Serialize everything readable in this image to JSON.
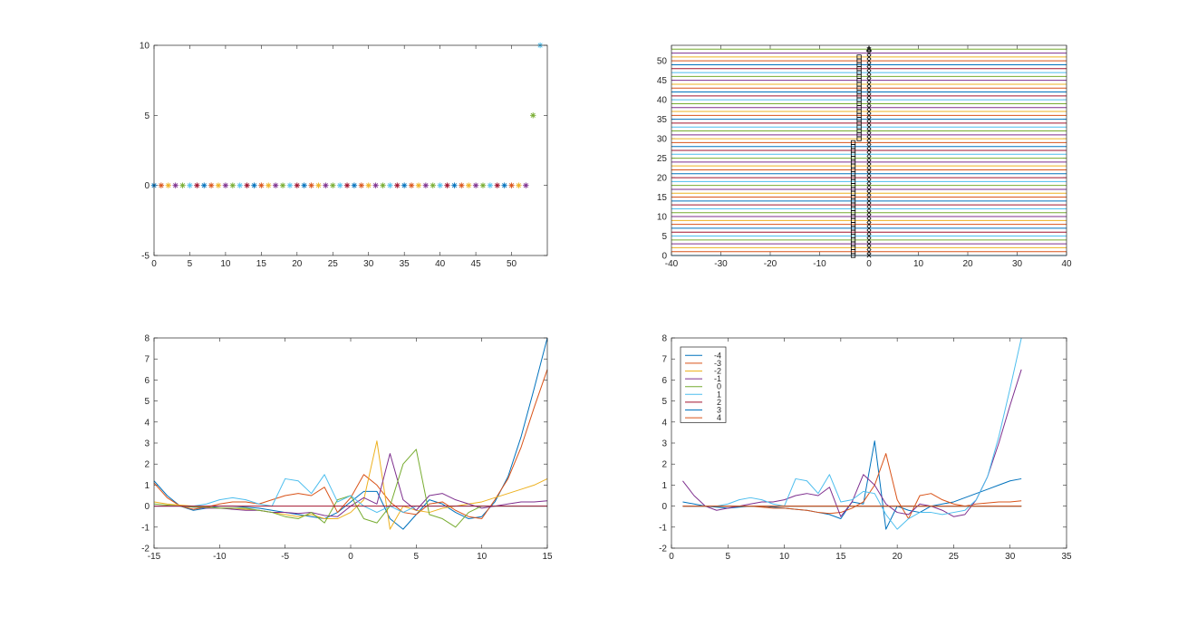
{
  "chart_data": [
    {
      "id": "p1",
      "type": "scatter",
      "marker": "asterisk",
      "xlim": [
        0,
        55
      ],
      "ylim": [
        -5,
        10
      ],
      "xticks": [
        0,
        5,
        10,
        15,
        20,
        25,
        30,
        35,
        40,
        45,
        50
      ],
      "yticks": [
        -5,
        0,
        5,
        10
      ],
      "series": [
        {
          "x": [
            0,
            1,
            2,
            3,
            4,
            5,
            6,
            7,
            8,
            9,
            10,
            11,
            12,
            13,
            14,
            15,
            16,
            17,
            18,
            19,
            20,
            21,
            22,
            23,
            24,
            25,
            26,
            27,
            28,
            29,
            30,
            31,
            32,
            33,
            34,
            35,
            36,
            37,
            38,
            39,
            40,
            41,
            42,
            43,
            44,
            45,
            46,
            47,
            48,
            49,
            50,
            51,
            52
          ],
          "y": [
            0,
            0,
            0,
            0,
            0,
            0,
            0,
            0,
            0,
            0,
            0,
            0,
            0,
            0,
            0,
            0,
            0,
            0,
            0,
            0,
            0,
            0,
            0,
            0,
            0,
            0,
            0,
            0,
            0,
            0,
            0,
            0,
            0,
            0,
            0,
            0,
            0,
            0,
            0,
            0,
            0,
            0,
            0,
            0,
            0,
            0,
            0,
            0,
            0,
            0,
            0,
            0,
            0
          ]
        },
        {
          "x": [
            53
          ],
          "y": [
            5
          ]
        },
        {
          "x": [
            54
          ],
          "y": [
            10
          ]
        }
      ]
    },
    {
      "id": "p2",
      "type": "line",
      "xlim": [
        -40,
        40
      ],
      "ylim": [
        0,
        54
      ],
      "xticks": [
        -40,
        -30,
        -20,
        -10,
        0,
        10,
        20,
        30,
        40
      ],
      "yticks": [
        0,
        5,
        10,
        15,
        20,
        25,
        30,
        35,
        40,
        45,
        50
      ],
      "horizontal_lines_y_range": [
        0,
        53
      ],
      "square_markers": {
        "x_by_level": [
          [
            0,
            29,
            -3.2
          ],
          [
            30,
            51,
            -2.0
          ]
        ]
      },
      "x_markers_x": 0,
      "top_marker_y": 53
    },
    {
      "id": "p3",
      "type": "line",
      "xlim": [
        -15,
        15
      ],
      "ylim": [
        -2,
        8
      ],
      "xticks": [
        -15,
        -10,
        -5,
        0,
        5,
        10,
        15
      ],
      "yticks": [
        -2,
        -1,
        0,
        1,
        2,
        3,
        4,
        5,
        6,
        7,
        8
      ],
      "x": [
        -15,
        -14,
        -13,
        -12,
        -11,
        -10,
        -9,
        -8,
        -7,
        -6,
        -5,
        -4,
        -3,
        -2,
        -1,
        0,
        1,
        2,
        3,
        4,
        5,
        6,
        7,
        8,
        9,
        10,
        11,
        12,
        13,
        14,
        15
      ],
      "series": [
        {
          "values": [
            1.2,
            0.5,
            0.0,
            -0.2,
            -0.1,
            0.0,
            0.0,
            -0.05,
            -0.1,
            -0.2,
            -0.3,
            -0.4,
            -0.5,
            -0.6,
            -0.3,
            0.2,
            0.7,
            0.7,
            -0.6,
            -1.1,
            -0.4,
            0.3,
            0.1,
            -0.3,
            -0.6,
            -0.5,
            0.2,
            1.4,
            3.3,
            5.6,
            8.0
          ]
        },
        {
          "values": [
            1.1,
            0.4,
            0.0,
            -0.15,
            -0.05,
            0.1,
            0.2,
            0.2,
            0.1,
            0.3,
            0.5,
            0.6,
            0.5,
            0.9,
            -0.3,
            0.4,
            1.5,
            1.0,
            0.2,
            -0.3,
            -0.4,
            0.1,
            0.2,
            -0.2,
            -0.5,
            -0.6,
            0.3,
            1.3,
            2.8,
            4.7,
            6.5
          ]
        },
        {
          "values": [
            0.2,
            0.1,
            0.05,
            0.0,
            -0.05,
            -0.1,
            -0.1,
            -0.15,
            -0.2,
            -0.3,
            -0.4,
            -0.5,
            -0.4,
            -0.6,
            -0.6,
            -0.3,
            0.3,
            3.1,
            -1.1,
            0.0,
            -0.2,
            -0.3,
            -0.1,
            0.0,
            0.1,
            0.2,
            0.4,
            0.6,
            0.8,
            1.0,
            1.3
          ]
        },
        {
          "values": [
            0.0,
            0.0,
            0.0,
            -0.05,
            -0.1,
            -0.1,
            -0.15,
            -0.2,
            -0.2,
            -0.3,
            -0.3,
            -0.35,
            -0.3,
            -0.45,
            -0.5,
            0.0,
            0.4,
            0.1,
            2.5,
            0.3,
            -0.2,
            0.5,
            0.6,
            0.3,
            0.1,
            -0.1,
            0.0,
            0.1,
            0.2,
            0.2,
            0.25
          ]
        },
        {
          "values": [
            0.1,
            0.05,
            0.0,
            -0.05,
            -0.05,
            -0.1,
            -0.1,
            -0.1,
            -0.2,
            -0.3,
            -0.5,
            -0.6,
            -0.3,
            -0.8,
            0.3,
            0.5,
            -0.6,
            -0.8,
            0.0,
            2.0,
            2.7,
            -0.4,
            -0.6,
            -1.0,
            -0.3,
            0.0,
            0.0,
            0.0,
            0.0,
            0.0,
            0.0
          ]
        },
        {
          "values": [
            0.0,
            0.0,
            0.0,
            0.0,
            0.1,
            0.3,
            0.4,
            0.3,
            0.1,
            0.0,
            1.3,
            1.2,
            0.6,
            1.5,
            0.2,
            0.5,
            0.0,
            -0.3,
            0.0,
            -0.3,
            0.0,
            0.0,
            0.0,
            0.0,
            0.0,
            0.0,
            0.0,
            0.0,
            0.0,
            0.0,
            0.0
          ]
        },
        {
          "values": [
            0.0,
            0.0,
            0.0,
            0.0,
            0.0,
            0.0,
            0.0,
            0.0,
            0.0,
            0.0,
            0.0,
            0.0,
            0.0,
            0.0,
            0.0,
            0.0,
            0.0,
            0.0,
            0.0,
            0.0,
            0.0,
            0.0,
            0.0,
            0.0,
            0.0,
            0.0,
            0.0,
            0.0,
            0.0,
            0.0,
            0.0
          ]
        }
      ]
    },
    {
      "id": "p4",
      "type": "line",
      "xlim": [
        0,
        35
      ],
      "ylim": [
        -2,
        8
      ],
      "xticks": [
        0,
        5,
        10,
        15,
        20,
        25,
        30,
        35
      ],
      "yticks": [
        -2,
        -1,
        0,
        1,
        2,
        3,
        4,
        5,
        6,
        7,
        8
      ],
      "x": [
        1,
        2,
        3,
        4,
        5,
        6,
        7,
        8,
        9,
        10,
        11,
        12,
        13,
        14,
        15,
        16,
        17,
        18,
        19,
        20,
        21,
        22,
        23,
        24,
        25,
        26,
        27,
        28,
        29,
        30,
        31
      ],
      "legend": {
        "location": "top-left",
        "entries": [
          "-4",
          "-3",
          "-2",
          "-1",
          "0",
          "1",
          "2",
          "3",
          "4"
        ]
      },
      "series": [
        {
          "values": [
            0.2,
            0.1,
            0.0,
            -0.05,
            -0.1,
            -0.05,
            0.0,
            0.0,
            -0.05,
            -0.1,
            -0.15,
            -0.2,
            -0.3,
            -0.4,
            -0.6,
            0.2,
            0.1,
            3.1,
            -1.1,
            0.0,
            -0.2,
            -0.3,
            0.0,
            0.1,
            0.2,
            0.4,
            0.6,
            0.8,
            1.0,
            1.2,
            1.3
          ]
        },
        {
          "values": [
            0.0,
            0.0,
            0.0,
            0.0,
            0.0,
            0.0,
            0.0,
            -0.05,
            -0.1,
            -0.1,
            -0.15,
            -0.2,
            -0.3,
            -0.35,
            -0.3,
            -0.1,
            0.2,
            1.0,
            2.5,
            0.3,
            -0.6,
            0.5,
            0.6,
            0.3,
            0.1,
            0.0,
            0.1,
            0.15,
            0.2,
            0.2,
            0.25
          ]
        },
        {
          "values": [
            0.0,
            0.0,
            0.0,
            0.0,
            0.0,
            0.0,
            0.0,
            0.0,
            0.0,
            0.0,
            0.0,
            0.0,
            0.0,
            0.0,
            0.0,
            0.0,
            0.0,
            0.0,
            0.0,
            0.0,
            0.0,
            0.0,
            0.0,
            0.0,
            0.0,
            0.0,
            0.0,
            0.0,
            0.0,
            0.0,
            0.0
          ]
        },
        {
          "values": [
            1.2,
            0.5,
            0.0,
            -0.2,
            -0.1,
            0.0,
            0.1,
            0.2,
            0.2,
            0.3,
            0.5,
            0.6,
            0.5,
            0.9,
            -0.5,
            0.2,
            1.5,
            1.0,
            0.1,
            -0.3,
            -0.4,
            0.1,
            0.0,
            -0.2,
            -0.5,
            -0.4,
            0.3,
            1.4,
            3.0,
            4.8,
            6.5
          ]
        },
        {
          "values": [
            0.0,
            0.0,
            0.0,
            0.0,
            0.0,
            0.0,
            0.0,
            0.0,
            0.0,
            0.0,
            0.0,
            0.0,
            0.0,
            0.0,
            0.0,
            0.0,
            0.0,
            0.0,
            0.0,
            0.0,
            0.0,
            0.0,
            0.0,
            0.0,
            0.0,
            0.0,
            0.0,
            0.0,
            0.0,
            0.0,
            0.0
          ]
        },
        {
          "values": [
            0.0,
            0.0,
            0.0,
            0.0,
            0.1,
            0.3,
            0.4,
            0.3,
            0.1,
            0.0,
            1.3,
            1.2,
            0.6,
            1.5,
            0.2,
            0.3,
            0.7,
            0.6,
            -0.4,
            -1.1,
            -0.6,
            -0.3,
            -0.3,
            -0.4,
            -0.3,
            -0.2,
            0.3,
            1.4,
            3.3,
            5.6,
            8.0
          ]
        },
        {
          "values": [
            0.0,
            0.0,
            0.0,
            0.0,
            0.0,
            0.0,
            0.0,
            0.0,
            0.0,
            0.0,
            0.0,
            0.0,
            0.0,
            0.0,
            0.0,
            0.0,
            0.0,
            0.0,
            0.0,
            0.0,
            0.0,
            0.0,
            0.0,
            0.0,
            0.0,
            0.0,
            0.0,
            0.0,
            0.0,
            0.0,
            0.0
          ]
        },
        {
          "values": [
            0.0,
            0.0,
            0.0,
            0.0,
            0.0,
            0.0,
            0.0,
            0.0,
            0.0,
            0.0,
            0.0,
            0.0,
            0.0,
            0.0,
            0.0,
            0.0,
            0.0,
            0.0,
            0.0,
            0.0,
            0.0,
            0.0,
            0.0,
            0.0,
            0.0,
            0.0,
            0.0,
            0.0,
            0.0,
            0.0,
            0.0
          ]
        },
        {
          "values": [
            0.0,
            0.0,
            0.0,
            0.0,
            0.0,
            0.0,
            0.0,
            0.0,
            0.0,
            0.0,
            0.0,
            0.0,
            0.0,
            0.0,
            0.0,
            0.0,
            0.0,
            0.0,
            0.0,
            0.0,
            0.0,
            0.0,
            0.0,
            0.0,
            0.0,
            0.0,
            0.0,
            0.0,
            0.0,
            0.0,
            0.0
          ]
        }
      ]
    }
  ],
  "colors": [
    "#0072BD",
    "#D95319",
    "#EDB120",
    "#7E2F8E",
    "#77AC30",
    "#4DBEEE",
    "#A2142F"
  ]
}
